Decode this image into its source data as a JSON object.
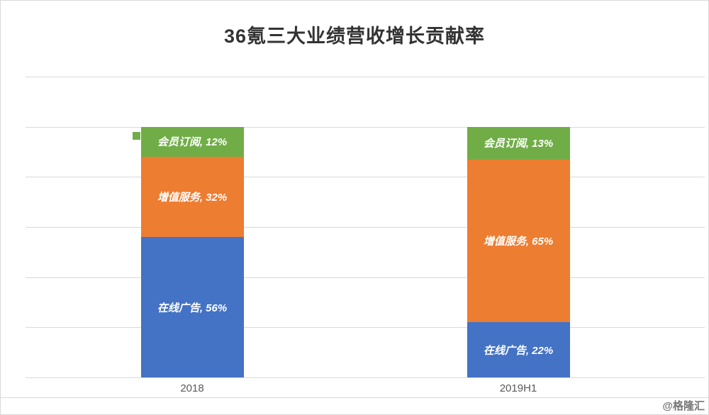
{
  "chart_data": {
    "type": "bar",
    "stacked": true,
    "orientation": "vertical",
    "title": "36氪三大业绩营收增长贡献率",
    "categories": [
      "2018",
      "2019H1"
    ],
    "series": [
      {
        "name": "在线广告",
        "color": "#4472C4",
        "values": [
          56,
          22
        ]
      },
      {
        "name": "增值服务",
        "color": "#ED7D31",
        "values": [
          32,
          65
        ]
      },
      {
        "name": "会员订阅",
        "color": "#70AD47",
        "values": [
          12,
          13
        ]
      }
    ],
    "label_format": "{name}, {value}%",
    "data_label_color": "#ffffff",
    "ylim": [
      0,
      120
    ],
    "gridline_interval": 20,
    "grid": true,
    "gridline_color": "#d9d9d9",
    "legend": "none",
    "axis_tick_labels_shown": false
  },
  "watermark": "@格隆汇"
}
